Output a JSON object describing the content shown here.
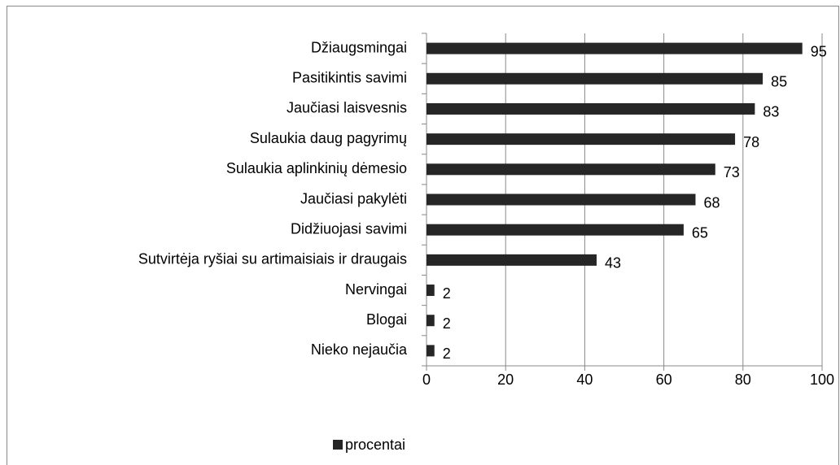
{
  "chart_data": {
    "type": "bar",
    "orientation": "horizontal",
    "categories": [
      "Džiaugsmingai",
      "Pasitikintis savimi",
      "Jaučiasi laisvesnis",
      "Sulaukia daug pagyrimų",
      "Sulaukia aplinkinių dėmesio",
      "Jaučiasi pakylėti",
      "Didžiuojasi savimi",
      "Sutvirtėja ryšiai su artimaisiais ir draugais",
      "Nervingai",
      "Blogai",
      "Nieko nejaučia"
    ],
    "series": [
      {
        "name": "procentai",
        "color": "#262626",
        "values": [
          95,
          85,
          83,
          78,
          73,
          68,
          65,
          43,
          2,
          2,
          2
        ]
      }
    ],
    "xlim": [
      0,
      100
    ],
    "xticks": [
      0,
      20,
      40,
      60,
      80,
      100
    ],
    "grid": true,
    "legend": "bottom"
  }
}
